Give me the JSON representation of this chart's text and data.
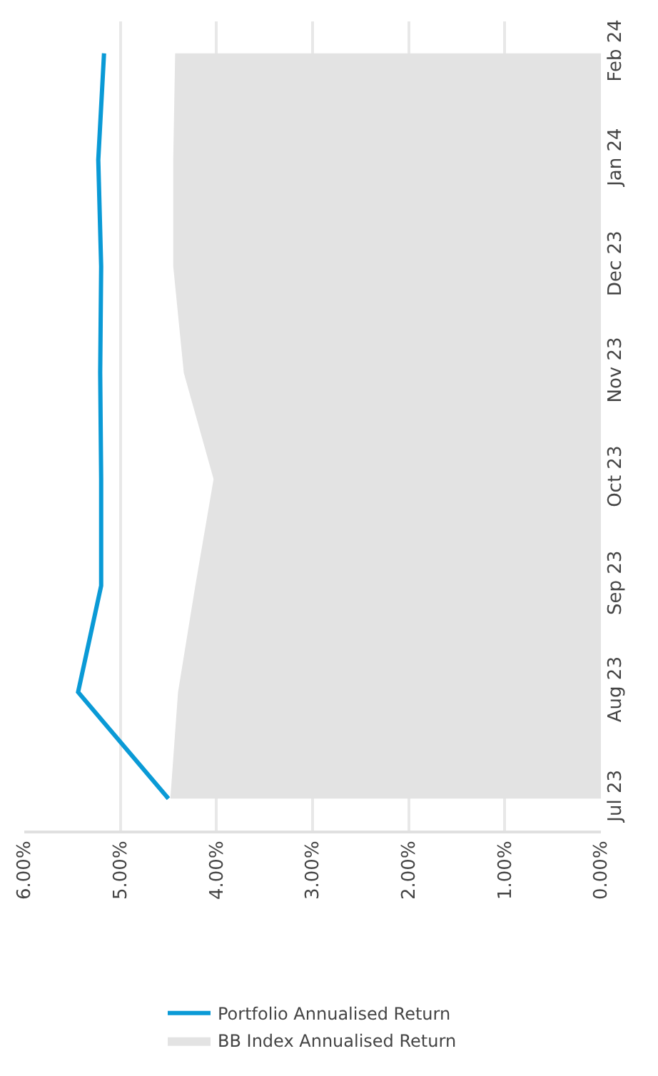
{
  "chart_data": {
    "type": "line",
    "orientation": "horizontal",
    "categories": [
      "Feb 24",
      "Jan 24",
      "Dec 23",
      "Nov 23",
      "Oct 23",
      "Sep 23",
      "Aug 23",
      "Jul 23"
    ],
    "series": [
      {
        "name": "Portfolio Annualised Return",
        "color": "#0a9ad6",
        "values": [
          5.17,
          5.23,
          5.2,
          5.21,
          5.2,
          5.2,
          5.44,
          4.5
        ]
      },
      {
        "name": "BB Index Annualised Return",
        "type": "area",
        "color": "#e3e3e3",
        "values": [
          4.43,
          4.45,
          4.45,
          4.34,
          4.03,
          4.22,
          4.4,
          4.48
        ]
      }
    ],
    "xlim": [
      6,
      0
    ],
    "xticks": [
      {
        "value": 6,
        "label": "6.00%"
      },
      {
        "value": 5,
        "label": "5.00%"
      },
      {
        "value": 4,
        "label": "4.00%"
      },
      {
        "value": 3,
        "label": "3.00%"
      },
      {
        "value": 2,
        "label": "2.00%"
      },
      {
        "value": 1,
        "label": "1.00%"
      },
      {
        "value": 0,
        "label": "0.00%"
      }
    ],
    "grid": "x",
    "legend": "bottom",
    "marker": "none",
    "line_style": "solid"
  }
}
